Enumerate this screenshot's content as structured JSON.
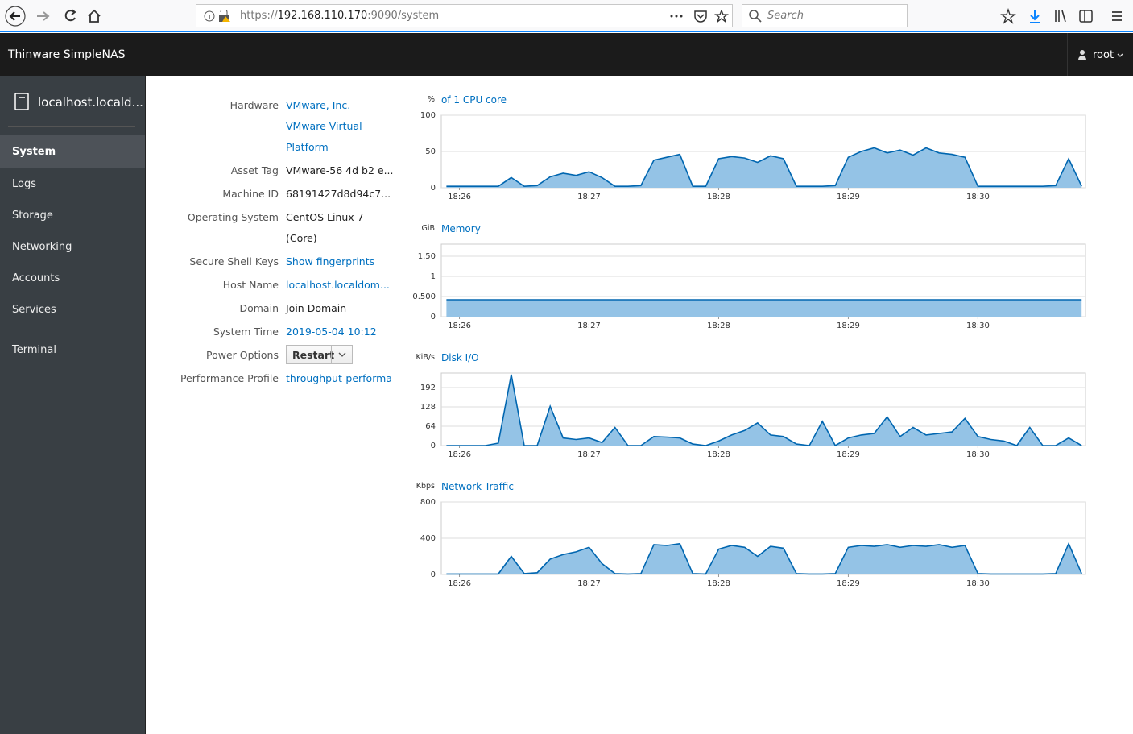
{
  "browser": {
    "url_scheme": "https://",
    "url_host": "192.168.110.170",
    "url_rest": ":9090/system",
    "search_placeholder": "Search"
  },
  "header": {
    "brand": "Thinware SimpleNAS",
    "user": "root"
  },
  "sidebar": {
    "host": "localhost.locald...",
    "nav": [
      "System",
      "Logs",
      "Storage",
      "Networking",
      "Accounts",
      "Services",
      "Terminal"
    ],
    "active": 0
  },
  "info": [
    {
      "label": "Hardware",
      "lines": [
        "VMware, Inc.",
        "VMware Virtual",
        "Platform"
      ],
      "link": true
    },
    {
      "label": "Asset Tag",
      "lines": [
        "VMware-56 4d b2 e..."
      ],
      "link": false
    },
    {
      "label": "Machine ID",
      "lines": [
        "68191427d8d94c7..."
      ],
      "link": false
    },
    {
      "label": "Operating System",
      "lines": [
        "CentOS Linux 7",
        "(Core)"
      ],
      "link": false
    },
    {
      "label": "Secure Shell Keys",
      "lines": [
        "Show fingerprints"
      ],
      "link": true
    },
    {
      "label": "Host Name",
      "lines": [
        "localhost.localdom..."
      ],
      "link": true
    },
    {
      "label": "Domain",
      "lines": [
        "Join Domain"
      ],
      "link": false
    },
    {
      "label": "System Time",
      "lines": [
        "2019-05-04 10:12"
      ],
      "link": true
    },
    {
      "label": "Power Options",
      "button": "Restart"
    },
    {
      "label": "Performance Profile",
      "lines": [
        "throughput-performa"
      ],
      "link": true
    }
  ],
  "chart_data": [
    {
      "type": "area",
      "title": "of 1 CPU core",
      "unit": "%",
      "color": "#0066b0",
      "fill": "#94c3e6",
      "xlim": [
        25.86,
        30.83
      ],
      "xticks": [
        {
          "value": 26,
          "label": "18:26"
        },
        {
          "value": 27,
          "label": "18:27"
        },
        {
          "value": 28,
          "label": "18:28"
        },
        {
          "value": 29,
          "label": "18:29"
        },
        {
          "value": 30,
          "label": "18:30"
        }
      ],
      "ylim": [
        0,
        100
      ],
      "yticks": [
        0,
        50,
        100
      ],
      "grid": true,
      "x": [
        25.9,
        26.0,
        26.1,
        26.2,
        26.3,
        26.4,
        26.5,
        26.6,
        26.7,
        26.8,
        26.9,
        27.0,
        27.1,
        27.2,
        27.3,
        27.4,
        27.5,
        27.6,
        27.7,
        27.8,
        27.9,
        28.0,
        28.1,
        28.2,
        28.3,
        28.4,
        28.5,
        28.6,
        28.7,
        28.8,
        28.9,
        29.0,
        29.1,
        29.2,
        29.3,
        29.4,
        29.5,
        29.6,
        29.7,
        29.8,
        29.9,
        30.0,
        30.1,
        30.2,
        30.3,
        30.4,
        30.5,
        30.6,
        30.7,
        30.8
      ],
      "values": [
        2,
        2,
        2,
        2,
        2,
        14,
        2,
        3,
        15,
        20,
        17,
        22,
        14,
        2,
        2,
        3,
        38,
        42,
        46,
        2,
        2,
        40,
        43,
        41,
        35,
        44,
        40,
        2,
        2,
        2,
        3,
        42,
        50,
        55,
        48,
        52,
        45,
        55,
        48,
        46,
        42,
        2,
        2,
        2,
        2,
        2,
        2,
        3,
        40,
        2
      ]
    },
    {
      "type": "area",
      "title": "Memory",
      "unit": "GiB",
      "color": "#0066b0",
      "fill": "#94c3e6",
      "xlim": [
        25.86,
        30.83
      ],
      "xticks": [
        {
          "value": 26,
          "label": "18:26"
        },
        {
          "value": 27,
          "label": "18:27"
        },
        {
          "value": 28,
          "label": "18:28"
        },
        {
          "value": 29,
          "label": "18:29"
        },
        {
          "value": 30,
          "label": "18:30"
        }
      ],
      "ylim": [
        0,
        1.8
      ],
      "yticks": [
        0,
        {
          "value": 0.5,
          "label": "0.500"
        },
        1,
        {
          "value": 1.5,
          "label": "1.50"
        }
      ],
      "grid": true,
      "x": [
        25.9,
        26.0,
        26.1,
        26.2,
        26.3,
        26.4,
        26.5,
        26.6,
        26.7,
        26.8,
        26.9,
        27.0,
        27.1,
        27.2,
        27.3,
        27.4,
        27.5,
        27.6,
        27.7,
        27.8,
        27.9,
        28.0,
        28.1,
        28.2,
        28.3,
        28.4,
        28.5,
        28.6,
        28.7,
        28.8,
        28.9,
        29.0,
        29.1,
        29.2,
        29.3,
        29.4,
        29.5,
        29.6,
        29.7,
        29.8,
        29.9,
        30.0,
        30.1,
        30.2,
        30.3,
        30.4,
        30.5,
        30.6,
        30.7,
        30.8
      ],
      "values": [
        0.42,
        0.42,
        0.42,
        0.42,
        0.42,
        0.42,
        0.42,
        0.42,
        0.42,
        0.42,
        0.42,
        0.42,
        0.42,
        0.42,
        0.42,
        0.42,
        0.42,
        0.42,
        0.42,
        0.42,
        0.42,
        0.42,
        0.42,
        0.42,
        0.42,
        0.42,
        0.42,
        0.42,
        0.42,
        0.42,
        0.42,
        0.42,
        0.42,
        0.42,
        0.42,
        0.42,
        0.42,
        0.42,
        0.42,
        0.42,
        0.42,
        0.42,
        0.42,
        0.42,
        0.42,
        0.42,
        0.42,
        0.42,
        0.42,
        0.42
      ]
    },
    {
      "type": "area",
      "title": "Disk I/O",
      "unit": "KiB/s",
      "color": "#0066b0",
      "fill": "#94c3e6",
      "xlim": [
        25.86,
        30.83
      ],
      "xticks": [
        {
          "value": 26,
          "label": "18:26"
        },
        {
          "value": 27,
          "label": "18:27"
        },
        {
          "value": 28,
          "label": "18:28"
        },
        {
          "value": 29,
          "label": "18:29"
        },
        {
          "value": 30,
          "label": "18:30"
        }
      ],
      "ylim": [
        0,
        240
      ],
      "yticks": [
        0,
        64,
        128,
        192
      ],
      "grid": true,
      "x": [
        25.9,
        26.0,
        26.1,
        26.2,
        26.3,
        26.4,
        26.5,
        26.6,
        26.7,
        26.8,
        26.9,
        27.0,
        27.1,
        27.2,
        27.3,
        27.4,
        27.5,
        27.6,
        27.7,
        27.8,
        27.9,
        28.0,
        28.1,
        28.2,
        28.3,
        28.4,
        28.5,
        28.6,
        28.7,
        28.8,
        28.9,
        29.0,
        29.1,
        29.2,
        29.3,
        29.4,
        29.5,
        29.6,
        29.7,
        29.8,
        29.9,
        30.0,
        30.1,
        30.2,
        30.3,
        30.4,
        30.5,
        30.6,
        30.7,
        30.8
      ],
      "values": [
        0,
        0,
        0,
        0,
        8,
        235,
        0,
        0,
        130,
        25,
        20,
        25,
        10,
        60,
        0,
        0,
        30,
        28,
        25,
        5,
        0,
        15,
        35,
        50,
        75,
        35,
        30,
        5,
        0,
        80,
        0,
        25,
        35,
        40,
        95,
        30,
        60,
        35,
        40,
        45,
        90,
        30,
        20,
        15,
        0,
        60,
        0,
        0,
        25,
        0
      ]
    },
    {
      "type": "area",
      "title": "Network Traffic",
      "unit": "Kbps",
      "color": "#0066b0",
      "fill": "#94c3e6",
      "xlim": [
        25.86,
        30.83
      ],
      "xticks": [
        {
          "value": 26,
          "label": "18:26"
        },
        {
          "value": 27,
          "label": "18:27"
        },
        {
          "value": 28,
          "label": "18:28"
        },
        {
          "value": 29,
          "label": "18:29"
        },
        {
          "value": 30,
          "label": "18:30"
        }
      ],
      "ylim": [
        0,
        800
      ],
      "yticks": [
        0,
        400,
        800
      ],
      "grid": true,
      "x": [
        25.9,
        26.0,
        26.1,
        26.2,
        26.3,
        26.4,
        26.5,
        26.6,
        26.7,
        26.8,
        26.9,
        27.0,
        27.1,
        27.2,
        27.3,
        27.4,
        27.5,
        27.6,
        27.7,
        27.8,
        27.9,
        28.0,
        28.1,
        28.2,
        28.3,
        28.4,
        28.5,
        28.6,
        28.7,
        28.8,
        28.9,
        29.0,
        29.1,
        29.2,
        29.3,
        29.4,
        29.5,
        29.6,
        29.7,
        29.8,
        29.9,
        30.0,
        30.1,
        30.2,
        30.3,
        30.4,
        30.5,
        30.6,
        30.7,
        30.8
      ],
      "values": [
        5,
        5,
        5,
        5,
        5,
        200,
        10,
        20,
        170,
        220,
        250,
        300,
        120,
        10,
        5,
        10,
        330,
        320,
        340,
        10,
        5,
        280,
        320,
        300,
        200,
        310,
        290,
        10,
        5,
        5,
        10,
        300,
        320,
        310,
        330,
        300,
        320,
        310,
        330,
        300,
        320,
        10,
        5,
        5,
        5,
        5,
        5,
        10,
        340,
        10
      ]
    }
  ]
}
